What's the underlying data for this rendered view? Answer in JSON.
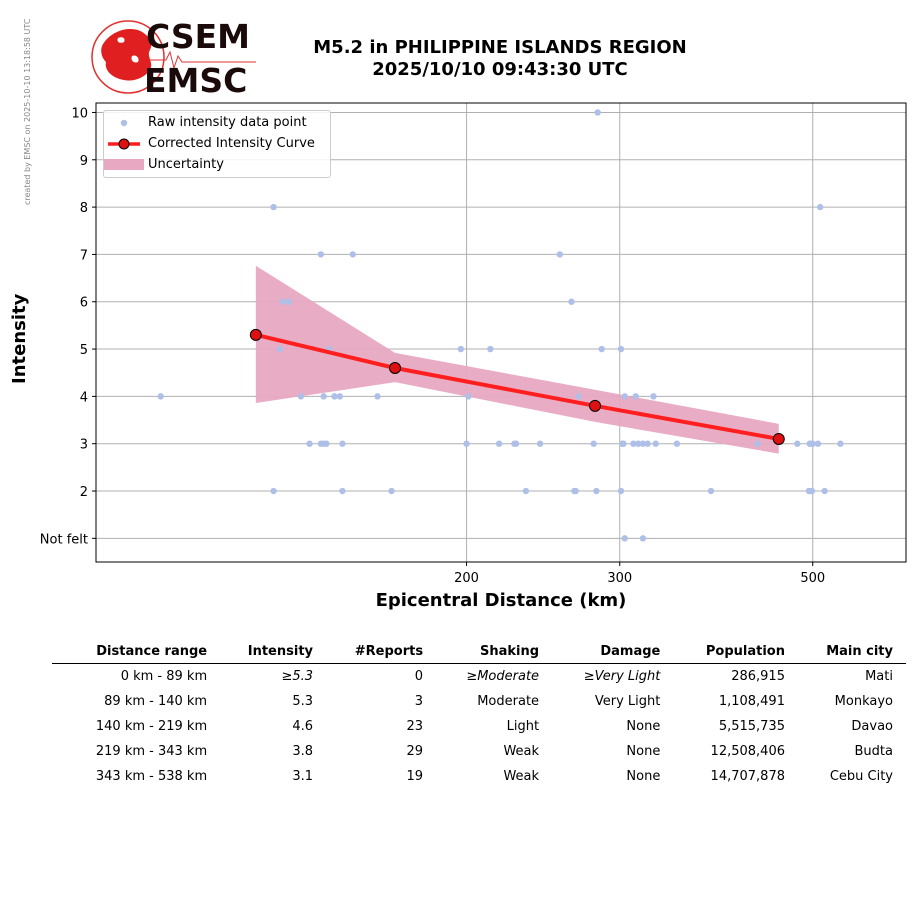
{
  "watermark": "created by EMSC on 2025-10-10 13:18:58 UTC",
  "logo": {
    "line1": "CSEM",
    "line2": "EMSC"
  },
  "chart_data": {
    "type": "scatter",
    "title": "M5.2 in PHILIPPINE ISLANDS REGION",
    "subtitle": "2025/10/10 09:43:30 UTC",
    "xlabel": "Epicentral Distance (km)",
    "ylabel": "Intensity",
    "xscale": "log",
    "xlim": [
      75,
      640
    ],
    "ylim": [
      0.5,
      10.2
    ],
    "xticks": [
      200,
      300,
      500
    ],
    "yticks": [
      1,
      2,
      3,
      4,
      5,
      6,
      7,
      8,
      9,
      10
    ],
    "ytick_labels": [
      "Not felt",
      "2",
      "3",
      "4",
      "5",
      "6",
      "7",
      "8",
      "9",
      "10"
    ],
    "grid": true,
    "legend_position": "upper left",
    "legend": [
      "Raw intensity data point",
      "Corrected Intensity Curve",
      "Uncertainty"
    ],
    "colors": {
      "raw": "#aebfe8",
      "curve": "#ff1f1f",
      "marker": "#dd1111",
      "band": "#e8a8c2"
    },
    "series": [
      {
        "name": "Raw intensity data point",
        "points": [
          [
            89,
            4
          ],
          [
            120,
            8
          ],
          [
            120,
            2
          ],
          [
            122,
            5
          ],
          [
            123,
            6
          ],
          [
            125,
            6
          ],
          [
            129,
            4
          ],
          [
            132,
            3
          ],
          [
            136,
            7
          ],
          [
            136,
            3
          ],
          [
            137,
            4
          ],
          [
            137,
            3
          ],
          [
            138,
            3
          ],
          [
            139,
            5
          ],
          [
            141,
            4
          ],
          [
            143,
            4
          ],
          [
            144,
            2
          ],
          [
            144,
            3
          ],
          [
            148,
            7
          ],
          [
            158,
            4
          ],
          [
            164,
            2
          ],
          [
            197,
            5
          ],
          [
            200,
            3
          ],
          [
            201,
            4
          ],
          [
            213,
            5
          ],
          [
            218,
            3
          ],
          [
            227,
            3
          ],
          [
            228,
            3
          ],
          [
            234,
            2
          ],
          [
            243,
            3
          ],
          [
            256,
            7
          ],
          [
            264,
            6
          ],
          [
            266,
            2
          ],
          [
            267,
            2
          ],
          [
            269,
            4
          ],
          [
            280,
            3
          ],
          [
            282,
            2
          ],
          [
            283,
            10
          ],
          [
            286,
            5
          ],
          [
            301,
            5
          ],
          [
            301,
            2
          ],
          [
            302,
            3
          ],
          [
            303,
            3
          ],
          [
            304,
            1
          ],
          [
            304,
            4
          ],
          [
            311,
            3
          ],
          [
            313,
            4
          ],
          [
            315,
            3
          ],
          [
            319,
            1
          ],
          [
            319,
            3
          ],
          [
            323,
            3
          ],
          [
            328,
            4
          ],
          [
            330,
            3
          ],
          [
            349,
            3
          ],
          [
            382,
            2
          ],
          [
            432,
            3
          ],
          [
            480,
            3
          ],
          [
            495,
            2
          ],
          [
            496,
            3
          ],
          [
            497,
            2
          ],
          [
            497,
            3
          ],
          [
            499,
            2
          ],
          [
            500,
            3
          ],
          [
            507,
            3
          ],
          [
            510,
            8
          ],
          [
            516,
            2
          ],
          [
            538,
            3
          ]
        ]
      },
      {
        "name": "Corrected Intensity Curve",
        "x": [
          114.5,
          165.5,
          281,
          457
        ],
        "y": [
          5.3,
          4.6,
          3.8,
          3.1
        ]
      },
      {
        "name": "Uncertainty",
        "x": [
          114.5,
          165.5,
          281,
          457
        ],
        "upper": [
          6.76,
          4.92,
          4.14,
          3.42
        ],
        "lower": [
          3.86,
          4.3,
          3.46,
          2.79
        ]
      }
    ]
  },
  "table": {
    "headers": [
      "Distance range",
      "Intensity",
      "#Reports",
      "Shaking",
      "Damage",
      "Population",
      "Main city"
    ],
    "rows": [
      [
        "0 km -   89 km",
        "≥5.3",
        "0",
        "≥Moderate",
        "≥Very Light",
        "286,915",
        "Mati"
      ],
      [
        "89 km -  140 km",
        "5.3",
        "3",
        "Moderate",
        "Very Light",
        "1,108,491",
        "Monkayo"
      ],
      [
        "140 km -  219 km",
        "4.6",
        "23",
        "Light",
        "None",
        "5,515,735",
        "Davao"
      ],
      [
        "219 km -  343 km",
        "3.8",
        "29",
        "Weak",
        "None",
        "12,508,406",
        "Budta"
      ],
      [
        "343 km -  538 km",
        "3.1",
        "19",
        "Weak",
        "None",
        "14,707,878",
        "Cebu City"
      ]
    ]
  }
}
